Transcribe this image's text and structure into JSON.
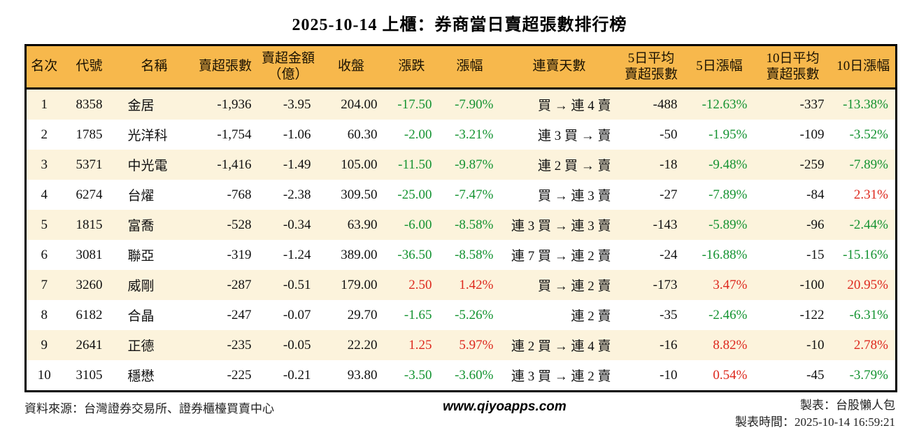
{
  "title": "2025-10-14 上櫃：券商當日賣超張數排行榜",
  "colors": {
    "up": "#DD281D",
    "dn": "#149331",
    "hdr": "#F7B84C",
    "cream": "#FCF3DC"
  },
  "table": {
    "columns": [
      {
        "key": "rank",
        "label": "名次"
      },
      {
        "key": "code",
        "label": "代號"
      },
      {
        "key": "name",
        "label": "名稱"
      },
      {
        "key": "sell_shares",
        "label": "賣超張數"
      },
      {
        "key": "sell_amount",
        "label": "賣超金額\n（億）"
      },
      {
        "key": "close",
        "label": "收盤"
      },
      {
        "key": "change",
        "label": "漲跌"
      },
      {
        "key": "change_pct",
        "label": "漲幅"
      },
      {
        "key": "streak",
        "label": "連賣天數"
      },
      {
        "key": "avg5",
        "label": "5日平均\n賣超張數"
      },
      {
        "key": "pct5",
        "label": "5日漲幅"
      },
      {
        "key": "avg10",
        "label": "10日平均\n賣超張數"
      },
      {
        "key": "pct10",
        "label": "10日漲幅"
      }
    ],
    "rows": [
      {
        "rank": "1",
        "code": "8358",
        "name": "金居",
        "sell_shares": "-1,936",
        "sell_amount": "-3.95",
        "close": "204.00",
        "change": "-17.50",
        "change_dir": "dn",
        "change_pct": "-7.90%",
        "change_pct_dir": "dn",
        "streak": "買 → 連 4 賣",
        "avg5": "-488",
        "pct5": "-12.63%",
        "pct5_dir": "dn",
        "avg10": "-337",
        "pct10": "-13.38%",
        "pct10_dir": "dn"
      },
      {
        "rank": "2",
        "code": "1785",
        "name": "光洋科",
        "sell_shares": "-1,754",
        "sell_amount": "-1.06",
        "close": "60.30",
        "change": "-2.00",
        "change_dir": "dn",
        "change_pct": "-3.21%",
        "change_pct_dir": "dn",
        "streak": "連 3 買 → 賣",
        "avg5": "-50",
        "pct5": "-1.95%",
        "pct5_dir": "dn",
        "avg10": "-109",
        "pct10": "-3.52%",
        "pct10_dir": "dn"
      },
      {
        "rank": "3",
        "code": "5371",
        "name": "中光電",
        "sell_shares": "-1,416",
        "sell_amount": "-1.49",
        "close": "105.00",
        "change": "-11.50",
        "change_dir": "dn",
        "change_pct": "-9.87%",
        "change_pct_dir": "dn",
        "streak": "連 2 買 → 賣",
        "avg5": "-18",
        "pct5": "-9.48%",
        "pct5_dir": "dn",
        "avg10": "-259",
        "pct10": "-7.89%",
        "pct10_dir": "dn"
      },
      {
        "rank": "4",
        "code": "6274",
        "name": "台燿",
        "sell_shares": "-768",
        "sell_amount": "-2.38",
        "close": "309.50",
        "change": "-25.00",
        "change_dir": "dn",
        "change_pct": "-7.47%",
        "change_pct_dir": "dn",
        "streak": "買 → 連 3 賣",
        "avg5": "-27",
        "pct5": "-7.89%",
        "pct5_dir": "dn",
        "avg10": "-84",
        "pct10": "2.31%",
        "pct10_dir": "up"
      },
      {
        "rank": "5",
        "code": "1815",
        "name": "富喬",
        "sell_shares": "-528",
        "sell_amount": "-0.34",
        "close": "63.90",
        "change": "-6.00",
        "change_dir": "dn",
        "change_pct": "-8.58%",
        "change_pct_dir": "dn",
        "streak": "連 3 買 → 連 3 賣",
        "avg5": "-143",
        "pct5": "-5.89%",
        "pct5_dir": "dn",
        "avg10": "-96",
        "pct10": "-2.44%",
        "pct10_dir": "dn"
      },
      {
        "rank": "6",
        "code": "3081",
        "name": "聯亞",
        "sell_shares": "-319",
        "sell_amount": "-1.24",
        "close": "389.00",
        "change": "-36.50",
        "change_dir": "dn",
        "change_pct": "-8.58%",
        "change_pct_dir": "dn",
        "streak": "連 7 買 → 連 2 賣",
        "avg5": "-24",
        "pct5": "-16.88%",
        "pct5_dir": "dn",
        "avg10": "-15",
        "pct10": "-15.16%",
        "pct10_dir": "dn"
      },
      {
        "rank": "7",
        "code": "3260",
        "name": "威剛",
        "sell_shares": "-287",
        "sell_amount": "-0.51",
        "close": "179.00",
        "change": "2.50",
        "change_dir": "up",
        "change_pct": "1.42%",
        "change_pct_dir": "up",
        "streak": "買 → 連 2 賣",
        "avg5": "-173",
        "pct5": "3.47%",
        "pct5_dir": "up",
        "avg10": "-100",
        "pct10": "20.95%",
        "pct10_dir": "up"
      },
      {
        "rank": "8",
        "code": "6182",
        "name": "合晶",
        "sell_shares": "-247",
        "sell_amount": "-0.07",
        "close": "29.70",
        "change": "-1.65",
        "change_dir": "dn",
        "change_pct": "-5.26%",
        "change_pct_dir": "dn",
        "streak": "連 2 賣",
        "avg5": "-35",
        "pct5": "-2.46%",
        "pct5_dir": "dn",
        "avg10": "-122",
        "pct10": "-6.31%",
        "pct10_dir": "dn"
      },
      {
        "rank": "9",
        "code": "2641",
        "name": "正德",
        "sell_shares": "-235",
        "sell_amount": "-0.05",
        "close": "22.20",
        "change": "1.25",
        "change_dir": "up",
        "change_pct": "5.97%",
        "change_pct_dir": "up",
        "streak": "連 2 買 → 連 4 賣",
        "avg5": "-16",
        "pct5": "8.82%",
        "pct5_dir": "up",
        "avg10": "-10",
        "pct10": "2.78%",
        "pct10_dir": "up"
      },
      {
        "rank": "10",
        "code": "3105",
        "name": "穩懋",
        "sell_shares": "-225",
        "sell_amount": "-0.21",
        "close": "93.80",
        "change": "-3.50",
        "change_dir": "dn",
        "change_pct": "-3.60%",
        "change_pct_dir": "dn",
        "streak": "連 3 買 → 連 2 賣",
        "avg5": "-10",
        "pct5": "0.54%",
        "pct5_dir": "up",
        "avg10": "-45",
        "pct10": "-3.79%",
        "pct10_dir": "dn"
      }
    ]
  },
  "footer": {
    "source": "資料來源：台灣證券交易所、證券櫃檯買賣中心",
    "website": "www.qiyoapps.com",
    "maker": "製表：台股懶人包",
    "timestamp": "製表時間：2025-10-14 16:59:21"
  }
}
